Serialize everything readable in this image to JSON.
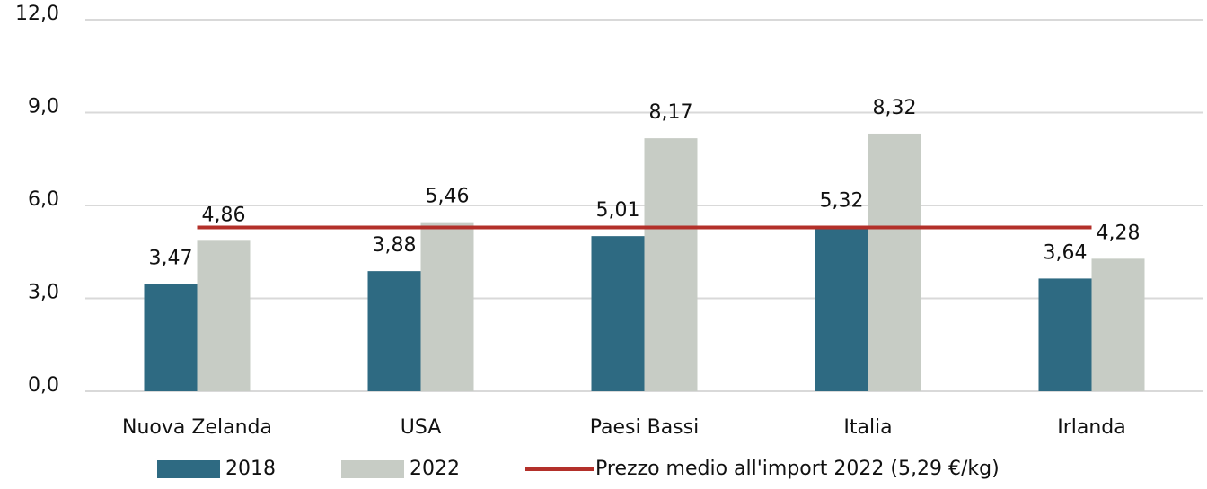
{
  "chart_data": {
    "type": "bar",
    "categories": [
      "Nuova Zelanda",
      "USA",
      "Paesi Bassi",
      "Italia",
      "Irlanda"
    ],
    "series": [
      {
        "name": "2018",
        "color": "#2e6a82",
        "values": [
          3.47,
          3.88,
          5.01,
          5.32,
          3.64
        ],
        "value_labels": [
          "3,47",
          "3,88",
          "5,01",
          "5,32",
          "3,64"
        ]
      },
      {
        "name": "2022",
        "color": "#c7ccc5",
        "values": [
          4.86,
          5.46,
          8.17,
          8.32,
          4.28
        ],
        "value_labels": [
          "4,86",
          "5,46",
          "8,17",
          "8,32",
          "4,28"
        ]
      }
    ],
    "reference_line": {
      "name": "Prezzo medio all'import 2022 (5,29 €/kg)",
      "value": 5.29,
      "color": "#b3302a"
    },
    "ylim": [
      0,
      12
    ],
    "yticks": [
      {
        "value": 0,
        "label": "0,0"
      },
      {
        "value": 3,
        "label": "3,0"
      },
      {
        "value": 6,
        "label": "6,0"
      },
      {
        "value": 9,
        "label": "9,0"
      },
      {
        "value": 12,
        "label": "12,0"
      }
    ],
    "grid": true,
    "legend": "bottom"
  }
}
